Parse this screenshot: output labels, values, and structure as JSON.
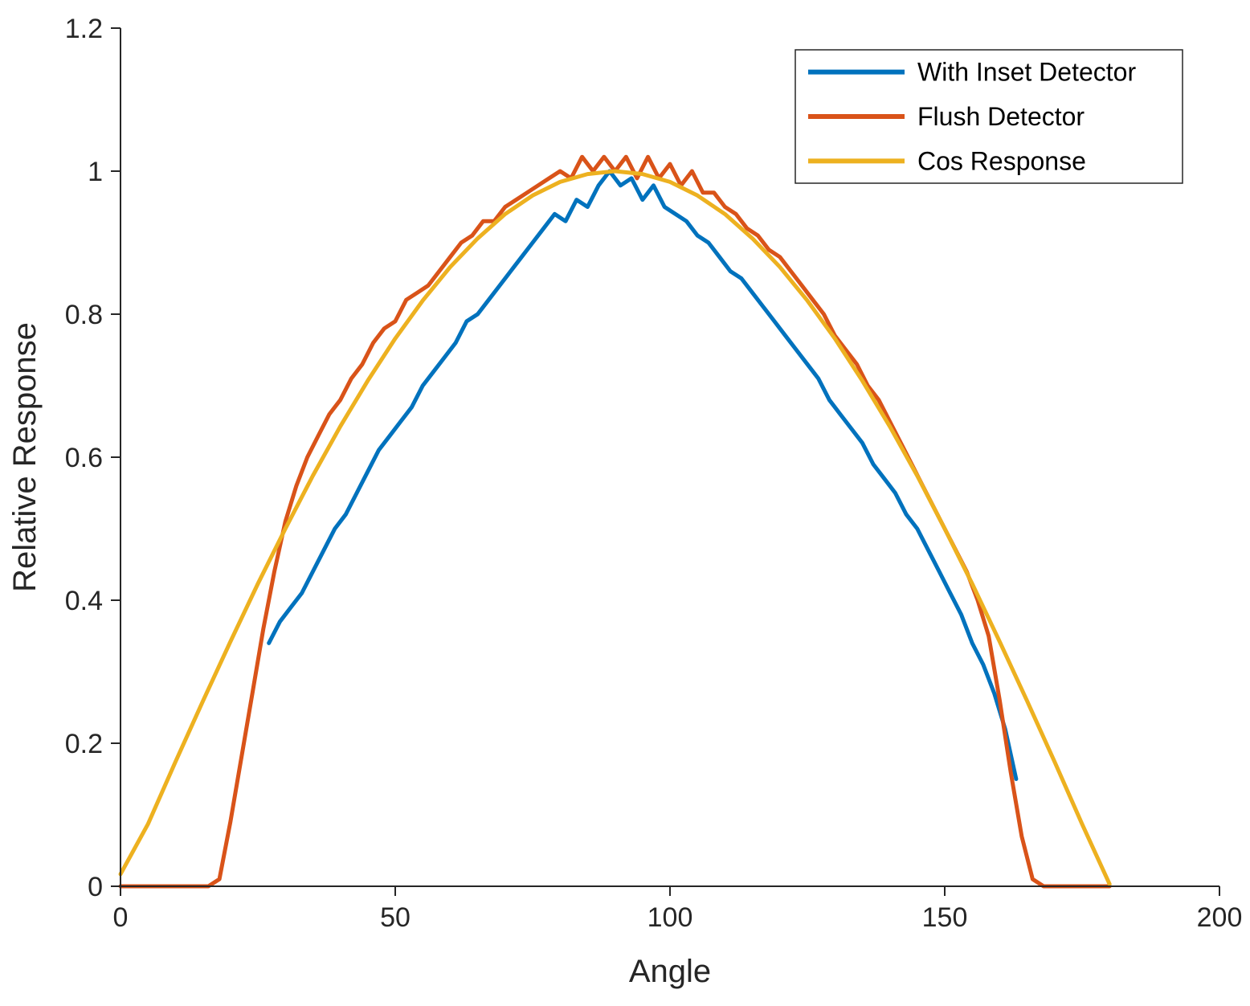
{
  "figure": {
    "background": "#ffffff",
    "axis_color": "#262626",
    "text_color": "#262626"
  },
  "axes": {
    "xlabel": "Angle",
    "ylabel": "Relative Response",
    "xlim": [
      0,
      200
    ],
    "ylim": [
      0,
      1.2
    ],
    "xticks": [
      0,
      50,
      100,
      150,
      200
    ],
    "xtick_labels": [
      "0",
      "50",
      "100",
      "150",
      "200"
    ],
    "yticks": [
      0,
      0.2,
      0.4,
      0.6,
      0.8,
      1,
      1.2
    ],
    "ytick_labels": [
      "0",
      "0.2",
      "0.4",
      "0.6",
      "0.8",
      "1",
      "1.2"
    ]
  },
  "legend": {
    "position": "top-right",
    "entries": [
      {
        "label": "With Inset Detector",
        "color": "#0072BD"
      },
      {
        "label": "Flush Detector",
        "color": "#D95319"
      },
      {
        "label": "Cos Response",
        "color": "#EDB120"
      }
    ]
  },
  "chart_data": {
    "type": "line",
    "title": "",
    "xlabel": "Angle",
    "ylabel": "Relative Response",
    "xlim": [
      0,
      200
    ],
    "ylim": [
      0,
      1.2
    ],
    "grid": false,
    "legend_position": "top-right",
    "series": [
      {
        "name": "With Inset Detector",
        "color": "#0072BD",
        "x": [
          27,
          29,
          31,
          33,
          35,
          37,
          39,
          41,
          43,
          45,
          47,
          49,
          51,
          53,
          55,
          57,
          59,
          61,
          63,
          65,
          67,
          69,
          71,
          73,
          75,
          77,
          79,
          81,
          83,
          85,
          87,
          89,
          91,
          93,
          95,
          97,
          99,
          101,
          103,
          105,
          107,
          109,
          111,
          113,
          115,
          117,
          119,
          121,
          123,
          125,
          127,
          129,
          131,
          133,
          135,
          137,
          139,
          141,
          143,
          145,
          147,
          149,
          151,
          153,
          155,
          157,
          159,
          161,
          163
        ],
        "y": [
          0.34,
          0.37,
          0.39,
          0.41,
          0.44,
          0.47,
          0.5,
          0.52,
          0.55,
          0.58,
          0.61,
          0.63,
          0.65,
          0.67,
          0.7,
          0.72,
          0.74,
          0.76,
          0.79,
          0.8,
          0.82,
          0.84,
          0.86,
          0.88,
          0.9,
          0.92,
          0.94,
          0.93,
          0.96,
          0.95,
          0.98,
          1.0,
          0.98,
          0.99,
          0.96,
          0.98,
          0.95,
          0.94,
          0.93,
          0.91,
          0.9,
          0.88,
          0.86,
          0.85,
          0.83,
          0.81,
          0.79,
          0.77,
          0.75,
          0.73,
          0.71,
          0.68,
          0.66,
          0.64,
          0.62,
          0.59,
          0.57,
          0.55,
          0.52,
          0.5,
          0.47,
          0.44,
          0.41,
          0.38,
          0.34,
          0.31,
          0.27,
          0.22,
          0.15
        ]
      },
      {
        "name": "Flush Detector",
        "color": "#D95319",
        "x": [
          0,
          2,
          4,
          6,
          8,
          10,
          12,
          14,
          16,
          18,
          20,
          22,
          24,
          26,
          28,
          30,
          32,
          34,
          36,
          38,
          40,
          42,
          44,
          46,
          48,
          50,
          52,
          54,
          56,
          58,
          60,
          62,
          64,
          66,
          68,
          70,
          72,
          74,
          76,
          78,
          80,
          82,
          84,
          86,
          88,
          90,
          92,
          94,
          96,
          98,
          100,
          102,
          104,
          106,
          108,
          110,
          112,
          114,
          116,
          118,
          120,
          122,
          124,
          126,
          128,
          130,
          132,
          134,
          136,
          138,
          140,
          142,
          144,
          146,
          148,
          150,
          152,
          154,
          156,
          158,
          160,
          162,
          164,
          166,
          168,
          170,
          172,
          174,
          176,
          178,
          180
        ],
        "y": [
          0,
          0,
          0,
          0,
          0,
          0,
          0,
          0,
          0,
          0.01,
          0.09,
          0.18,
          0.27,
          0.36,
          0.44,
          0.51,
          0.56,
          0.6,
          0.63,
          0.66,
          0.68,
          0.71,
          0.73,
          0.76,
          0.78,
          0.79,
          0.82,
          0.83,
          0.84,
          0.86,
          0.88,
          0.9,
          0.91,
          0.93,
          0.93,
          0.95,
          0.96,
          0.97,
          0.98,
          0.99,
          1.0,
          0.99,
          1.02,
          1.0,
          1.02,
          1.0,
          1.02,
          0.99,
          1.02,
          0.99,
          1.01,
          0.98,
          1.0,
          0.97,
          0.97,
          0.95,
          0.94,
          0.92,
          0.91,
          0.89,
          0.88,
          0.86,
          0.84,
          0.82,
          0.8,
          0.77,
          0.75,
          0.73,
          0.7,
          0.68,
          0.65,
          0.62,
          0.59,
          0.56,
          0.53,
          0.5,
          0.47,
          0.44,
          0.4,
          0.35,
          0.26,
          0.16,
          0.07,
          0.01,
          0,
          0,
          0,
          0,
          0,
          0,
          0
        ]
      },
      {
        "name": "Cos Response",
        "color": "#EDB120",
        "x": [
          0,
          5,
          10,
          15,
          20,
          25,
          30,
          35,
          40,
          45,
          50,
          55,
          60,
          65,
          70,
          75,
          80,
          85,
          90,
          95,
          100,
          105,
          110,
          115,
          120,
          125,
          130,
          135,
          140,
          145,
          150,
          155,
          160,
          165,
          170,
          175,
          180
        ],
        "y": [
          0.017,
          0.087,
          0.174,
          0.259,
          0.342,
          0.423,
          0.5,
          0.574,
          0.643,
          0.707,
          0.766,
          0.819,
          0.866,
          0.906,
          0.94,
          0.966,
          0.985,
          0.996,
          1.0,
          0.996,
          0.985,
          0.966,
          0.94,
          0.906,
          0.866,
          0.819,
          0.766,
          0.707,
          0.643,
          0.574,
          0.5,
          0.423,
          0.342,
          0.259,
          0.174,
          0.087,
          0.003
        ]
      }
    ]
  }
}
